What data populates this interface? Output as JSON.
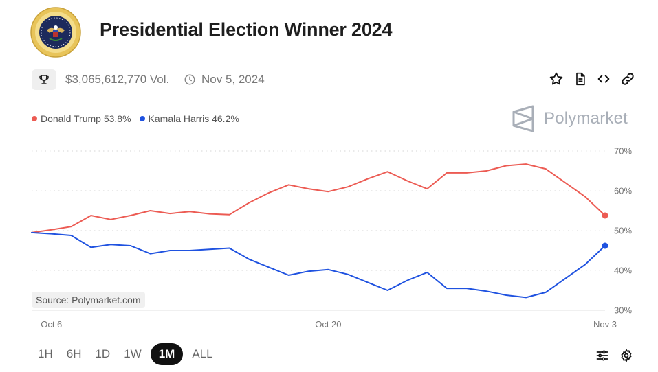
{
  "header": {
    "title": "Presidential Election Winner 2024",
    "seal_icon": "presidential-seal-icon"
  },
  "meta": {
    "volume": "$3,065,612,770 Vol.",
    "end_date": "Nov 5, 2024",
    "icons": [
      "trophy-icon",
      "clock-icon"
    ]
  },
  "actions": [
    "star-icon",
    "document-icon",
    "code-embed-icon",
    "link-icon"
  ],
  "legend": {
    "items": [
      {
        "label": "Donald Trump 53.8%",
        "color": "#ec5b53"
      },
      {
        "label": "Kamala Harris 46.2%",
        "color": "#1f52e0"
      }
    ]
  },
  "brand": {
    "name": "Polymarket",
    "color": "#a9afb8"
  },
  "source_label": "Source: Polymarket.com",
  "time_ranges": {
    "options": [
      "1H",
      "6H",
      "1D",
      "1W",
      "1M",
      "ALL"
    ],
    "selected": "1M"
  },
  "bottom_icons": [
    "filter-sliders-icon",
    "settings-gear-icon"
  ],
  "chart_data": {
    "type": "line",
    "x_axis": {
      "type": "date",
      "range": [
        "2024-10-05",
        "2024-11-03"
      ],
      "tick_labels": [
        "Oct 6",
        "Oct 20",
        "Nov 3"
      ],
      "tick_dates": [
        "2024-10-06",
        "2024-10-20",
        "2024-11-03"
      ]
    },
    "y_axis": {
      "unit": "%",
      "range": [
        30,
        70
      ],
      "ticks": [
        30,
        40,
        50,
        60,
        70
      ],
      "tick_labels": [
        "30%",
        "40%",
        "50%",
        "60%",
        "70%"
      ],
      "position": "right",
      "grid": "dotted"
    },
    "legend_position": "top-left",
    "series": [
      {
        "name": "Donald Trump",
        "color": "#ec5b53",
        "points": [
          [
            "2024-10-05",
            49.5
          ],
          [
            "2024-10-06",
            50.2
          ],
          [
            "2024-10-07",
            51.0
          ],
          [
            "2024-10-08",
            53.8
          ],
          [
            "2024-10-09",
            52.8
          ],
          [
            "2024-10-10",
            53.8
          ],
          [
            "2024-10-11",
            55.0
          ],
          [
            "2024-10-12",
            54.3
          ],
          [
            "2024-10-13",
            54.8
          ],
          [
            "2024-10-14",
            54.2
          ],
          [
            "2024-10-15",
            54.0
          ],
          [
            "2024-10-16",
            57.0
          ],
          [
            "2024-10-17",
            59.5
          ],
          [
            "2024-10-18",
            61.5
          ],
          [
            "2024-10-19",
            60.5
          ],
          [
            "2024-10-20",
            59.8
          ],
          [
            "2024-10-21",
            61.0
          ],
          [
            "2024-10-22",
            63.0
          ],
          [
            "2024-10-23",
            64.8
          ],
          [
            "2024-10-24",
            62.5
          ],
          [
            "2024-10-25",
            60.5
          ],
          [
            "2024-10-26",
            64.5
          ],
          [
            "2024-10-27",
            64.5
          ],
          [
            "2024-10-28",
            65.0
          ],
          [
            "2024-10-29",
            66.3
          ],
          [
            "2024-10-30",
            66.7
          ],
          [
            "2024-10-31",
            65.5
          ],
          [
            "2024-11-01",
            62.0
          ],
          [
            "2024-11-02",
            58.5
          ],
          [
            "2024-11-03",
            53.8
          ]
        ]
      },
      {
        "name": "Kamala Harris",
        "color": "#1f52e0",
        "points": [
          [
            "2024-10-05",
            49.5
          ],
          [
            "2024-10-06",
            49.2
          ],
          [
            "2024-10-07",
            48.8
          ],
          [
            "2024-10-08",
            45.8
          ],
          [
            "2024-10-09",
            46.5
          ],
          [
            "2024-10-10",
            46.2
          ],
          [
            "2024-10-11",
            44.2
          ],
          [
            "2024-10-12",
            45.0
          ],
          [
            "2024-10-13",
            45.0
          ],
          [
            "2024-10-14",
            45.3
          ],
          [
            "2024-10-15",
            45.6
          ],
          [
            "2024-10-16",
            42.8
          ],
          [
            "2024-10-17",
            40.8
          ],
          [
            "2024-10-18",
            38.8
          ],
          [
            "2024-10-19",
            39.8
          ],
          [
            "2024-10-20",
            40.2
          ],
          [
            "2024-10-21",
            39.0
          ],
          [
            "2024-10-22",
            37.0
          ],
          [
            "2024-10-23",
            35.0
          ],
          [
            "2024-10-24",
            37.5
          ],
          [
            "2024-10-25",
            39.5
          ],
          [
            "2024-10-26",
            35.5
          ],
          [
            "2024-10-27",
            35.5
          ],
          [
            "2024-10-28",
            34.8
          ],
          [
            "2024-10-29",
            33.8
          ],
          [
            "2024-10-30",
            33.2
          ],
          [
            "2024-10-31",
            34.5
          ],
          [
            "2024-11-01",
            38.0
          ],
          [
            "2024-11-02",
            41.5
          ],
          [
            "2024-11-03",
            46.2
          ]
        ]
      }
    ]
  }
}
